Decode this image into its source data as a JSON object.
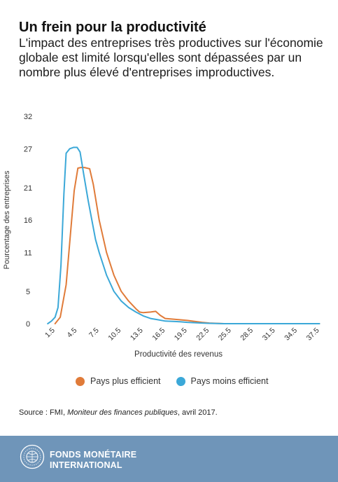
{
  "header": {
    "title": "Un frein pour la productivité",
    "subtitle": "L'impact des entreprises très productives sur l'économie globale est limité lorsqu'elles sont dépassées par un nombre plus élevé d'entreprises improductives."
  },
  "chart_data": {
    "type": "line",
    "title": "",
    "xlabel": "Productivité des revenus",
    "ylabel": "Pourcentage des entreprises",
    "x_ticks": [
      "1.5",
      "4.5",
      "7.5",
      "10.5",
      "13.5",
      "16.5",
      "19.5",
      "22.5",
      "25.5",
      "28.5",
      "31.5",
      "34.5",
      "37.5"
    ],
    "y_ticks": [
      "0",
      "5",
      "11",
      "16",
      "21",
      "27",
      "32"
    ],
    "xlim": [
      0,
      38.5
    ],
    "ylim": [
      0,
      32
    ],
    "grid": false,
    "legend_position": "bottom",
    "series": [
      {
        "name": "Pays plus efficient",
        "color": "#e07b39",
        "points": [
          [
            1.5,
            0
          ],
          [
            2.2,
            1
          ],
          [
            3.0,
            6
          ],
          [
            3.6,
            14
          ],
          [
            4.1,
            20.5
          ],
          [
            4.6,
            24
          ],
          [
            5.0,
            24.1
          ],
          [
            5.5,
            24.1
          ],
          [
            6.2,
            23.9
          ],
          [
            6.7,
            21.5
          ],
          [
            7.5,
            16
          ],
          [
            8.5,
            11
          ],
          [
            9.5,
            7.5
          ],
          [
            10.5,
            5
          ],
          [
            11.5,
            3.5
          ],
          [
            12.5,
            2.3
          ],
          [
            13.0,
            1.8
          ],
          [
            13.5,
            1.7
          ],
          [
            14.5,
            1.8
          ],
          [
            15.2,
            1.9
          ],
          [
            15.8,
            1.3
          ],
          [
            16.5,
            0.8
          ],
          [
            17.5,
            0.7
          ],
          [
            19.5,
            0.5
          ],
          [
            21.5,
            0.2
          ],
          [
            22.5,
            0.1
          ],
          [
            24.5,
            0
          ],
          [
            37.5,
            0
          ]
        ]
      },
      {
        "name": "Pays moins efficient",
        "color": "#3ba8d8",
        "points": [
          [
            0.5,
            0
          ],
          [
            1.0,
            0.4
          ],
          [
            1.5,
            1
          ],
          [
            1.9,
            2.5
          ],
          [
            2.3,
            9
          ],
          [
            2.7,
            20
          ],
          [
            3.0,
            26.3
          ],
          [
            3.5,
            27
          ],
          [
            4.0,
            27.2
          ],
          [
            4.5,
            27.2
          ],
          [
            4.9,
            26.5
          ],
          [
            5.4,
            23
          ],
          [
            6.0,
            19
          ],
          [
            7.0,
            13
          ],
          [
            7.5,
            11
          ],
          [
            8.5,
            7.5
          ],
          [
            9.5,
            5
          ],
          [
            10.5,
            3.5
          ],
          [
            11.5,
            2.5
          ],
          [
            12.5,
            1.8
          ],
          [
            13.5,
            1.2
          ],
          [
            14.5,
            0.8
          ],
          [
            15.5,
            0.6
          ],
          [
            16.5,
            0.4
          ],
          [
            18.5,
            0.3
          ],
          [
            19.5,
            0.2
          ],
          [
            21.5,
            0.1
          ],
          [
            22.5,
            0.05
          ],
          [
            24.5,
            0
          ],
          [
            37.5,
            0
          ]
        ]
      }
    ]
  },
  "source": {
    "prefix": "Source : FMI, ",
    "publication": "Moniteur des finances publiques",
    "suffix": ", avril 2017."
  },
  "footer": {
    "org_line1": "FONDS MONÉTAIRE",
    "org_line2": "INTERNATIONAL"
  }
}
